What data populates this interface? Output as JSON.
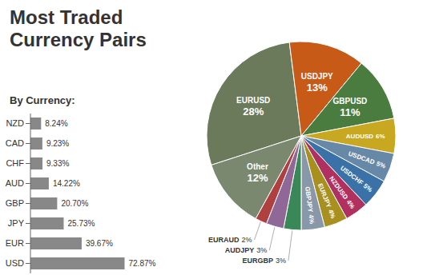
{
  "chart_data": [
    {
      "type": "pie",
      "title": "Most Traded\nCurrency Pairs",
      "categories": [
        "EURUSD",
        "USDJPY",
        "GBPUSD",
        "AUDUSD",
        "USDCAD",
        "USDCHF",
        "NZDUSD",
        "EURJPY",
        "GBPJPY",
        "EURGBP",
        "AUDJPY",
        "EURAUD",
        "Other"
      ],
      "values": [
        28,
        13,
        11,
        6,
        5,
        5,
        4,
        4,
        4,
        3,
        3,
        2,
        12
      ],
      "value_labels": [
        "28%",
        "13%",
        "11%",
        "6%",
        "5%",
        "5%",
        "4%",
        "4%",
        "4%",
        "3%",
        "3%",
        "2%",
        "12%"
      ],
      "colors": [
        "#6b7a5a",
        "#c85a18",
        "#4a7c3f",
        "#c8a820",
        "#6888a8",
        "#3a72a8",
        "#b03060",
        "#a89020",
        "#8898a8",
        "#3a8858",
        "#906898",
        "#b04040",
        "#7a8870"
      ],
      "data_labels": true
    },
    {
      "type": "bar",
      "title": "By Currency:",
      "orientation": "horizontal",
      "categories": [
        "NZD",
        "CAD",
        "CHF",
        "AUD",
        "GBP",
        "JPY",
        "EUR",
        "USD"
      ],
      "values": [
        8.24,
        9.23,
        9.33,
        14.22,
        20.7,
        25.73,
        39.67,
        72.87
      ],
      "value_labels": [
        "8.24%",
        "9.23%",
        "9.33%",
        "14.22%",
        "20.70%",
        "25.73%",
        "39.67%",
        "72.87%"
      ],
      "color": "#888888",
      "data_labels": true,
      "tick_labels": "y",
      "grid": false
    }
  ]
}
